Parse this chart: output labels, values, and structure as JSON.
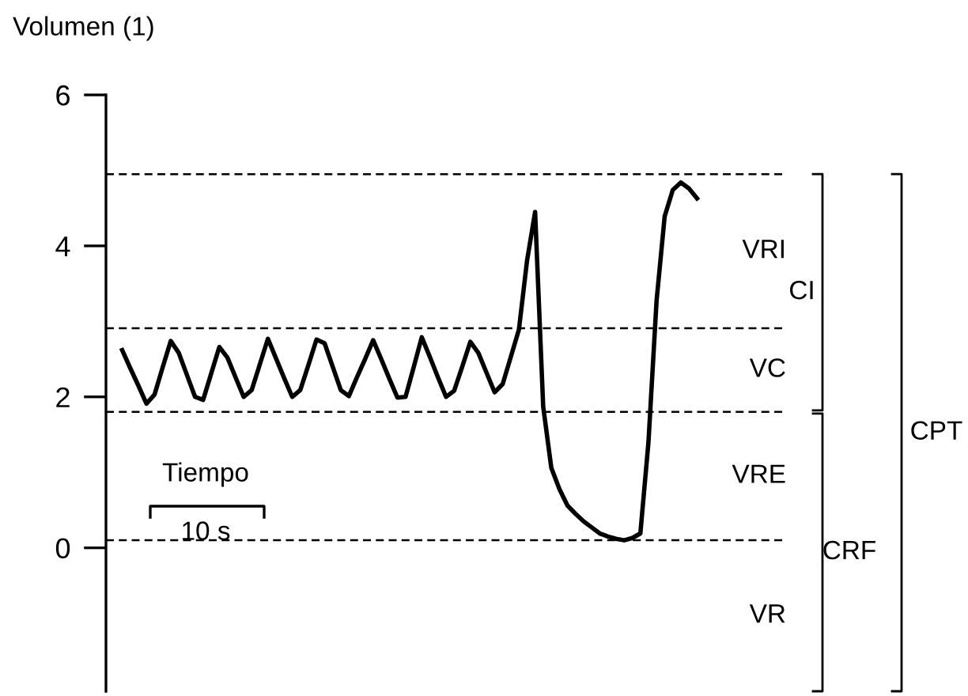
{
  "chart_data": {
    "type": "line",
    "ylabel": "Volumen (1)",
    "categories": [
      null,
      null,
      null,
      null,
      null,
      null,
      null,
      null,
      null,
      null,
      null,
      null,
      null,
      null,
      null,
      null,
      null,
      null,
      null,
      null,
      null,
      null,
      null,
      null,
      null,
      null,
      null,
      null,
      null,
      null,
      null,
      null,
      null,
      null,
      null,
      null,
      null,
      null,
      null,
      null,
      null,
      null,
      null,
      null,
      null,
      null,
      null,
      null,
      null,
      null,
      null,
      null,
      null,
      null,
      null,
      null,
      null,
      null,
      null,
      null,
      null,
      null,
      null,
      null,
      null,
      null,
      null,
      null,
      null,
      null,
      null,
      null
    ],
    "series": [
      {
        "color": "#000000",
        "values": [
          2.62,
          2.38,
          2.15,
          1.91,
          2.03,
          2.39,
          2.74,
          2.58,
          2.29,
          2.0,
          1.96,
          2.31,
          2.66,
          2.52,
          2.26,
          2.0,
          2.09,
          2.43,
          2.77,
          2.51,
          2.25,
          2.0,
          2.09,
          2.42,
          2.76,
          2.71,
          2.4,
          2.09,
          2.01,
          2.26,
          2.5,
          2.75,
          2.5,
          2.24,
          1.99,
          2.0,
          2.39,
          2.79,
          2.53,
          2.26,
          2.0,
          2.08,
          2.4,
          2.73,
          2.58,
          2.32,
          2.06,
          2.17,
          2.53,
          2.89,
          3.8,
          4.45,
          1.87,
          1.06,
          0.78,
          0.56,
          0.45,
          0.35,
          0.27,
          0.19,
          0.15,
          0.12,
          0.1,
          0.13,
          0.19,
          1.4,
          3.27,
          4.39,
          4.74,
          4.84,
          4.76,
          4.63
        ]
      }
    ],
    "ylim": [
      -1.9,
      6
    ],
    "yticks": [
      0,
      2,
      4,
      6
    ],
    "tick_labels": "y",
    "grid": false,
    "marker": "none",
    "line_style": "solid",
    "ref_lines": [
      {
        "axis": "y",
        "value": 4.95,
        "line_style": "dashed",
        "color": "#000000"
      },
      {
        "axis": "y",
        "value": 2.91,
        "line_style": "dashed",
        "color": "#000000"
      },
      {
        "axis": "y",
        "value": 1.8,
        "line_style": "dashed",
        "color": "#000000"
      },
      {
        "axis": "y",
        "value": 0.1,
        "line_style": "dashed",
        "color": "#000000"
      }
    ],
    "annotations": [
      "Tiempo",
      "10 s",
      "VRI",
      "VC",
      "VRE",
      "VR",
      "CI",
      "CRF",
      "CPT"
    ]
  }
}
